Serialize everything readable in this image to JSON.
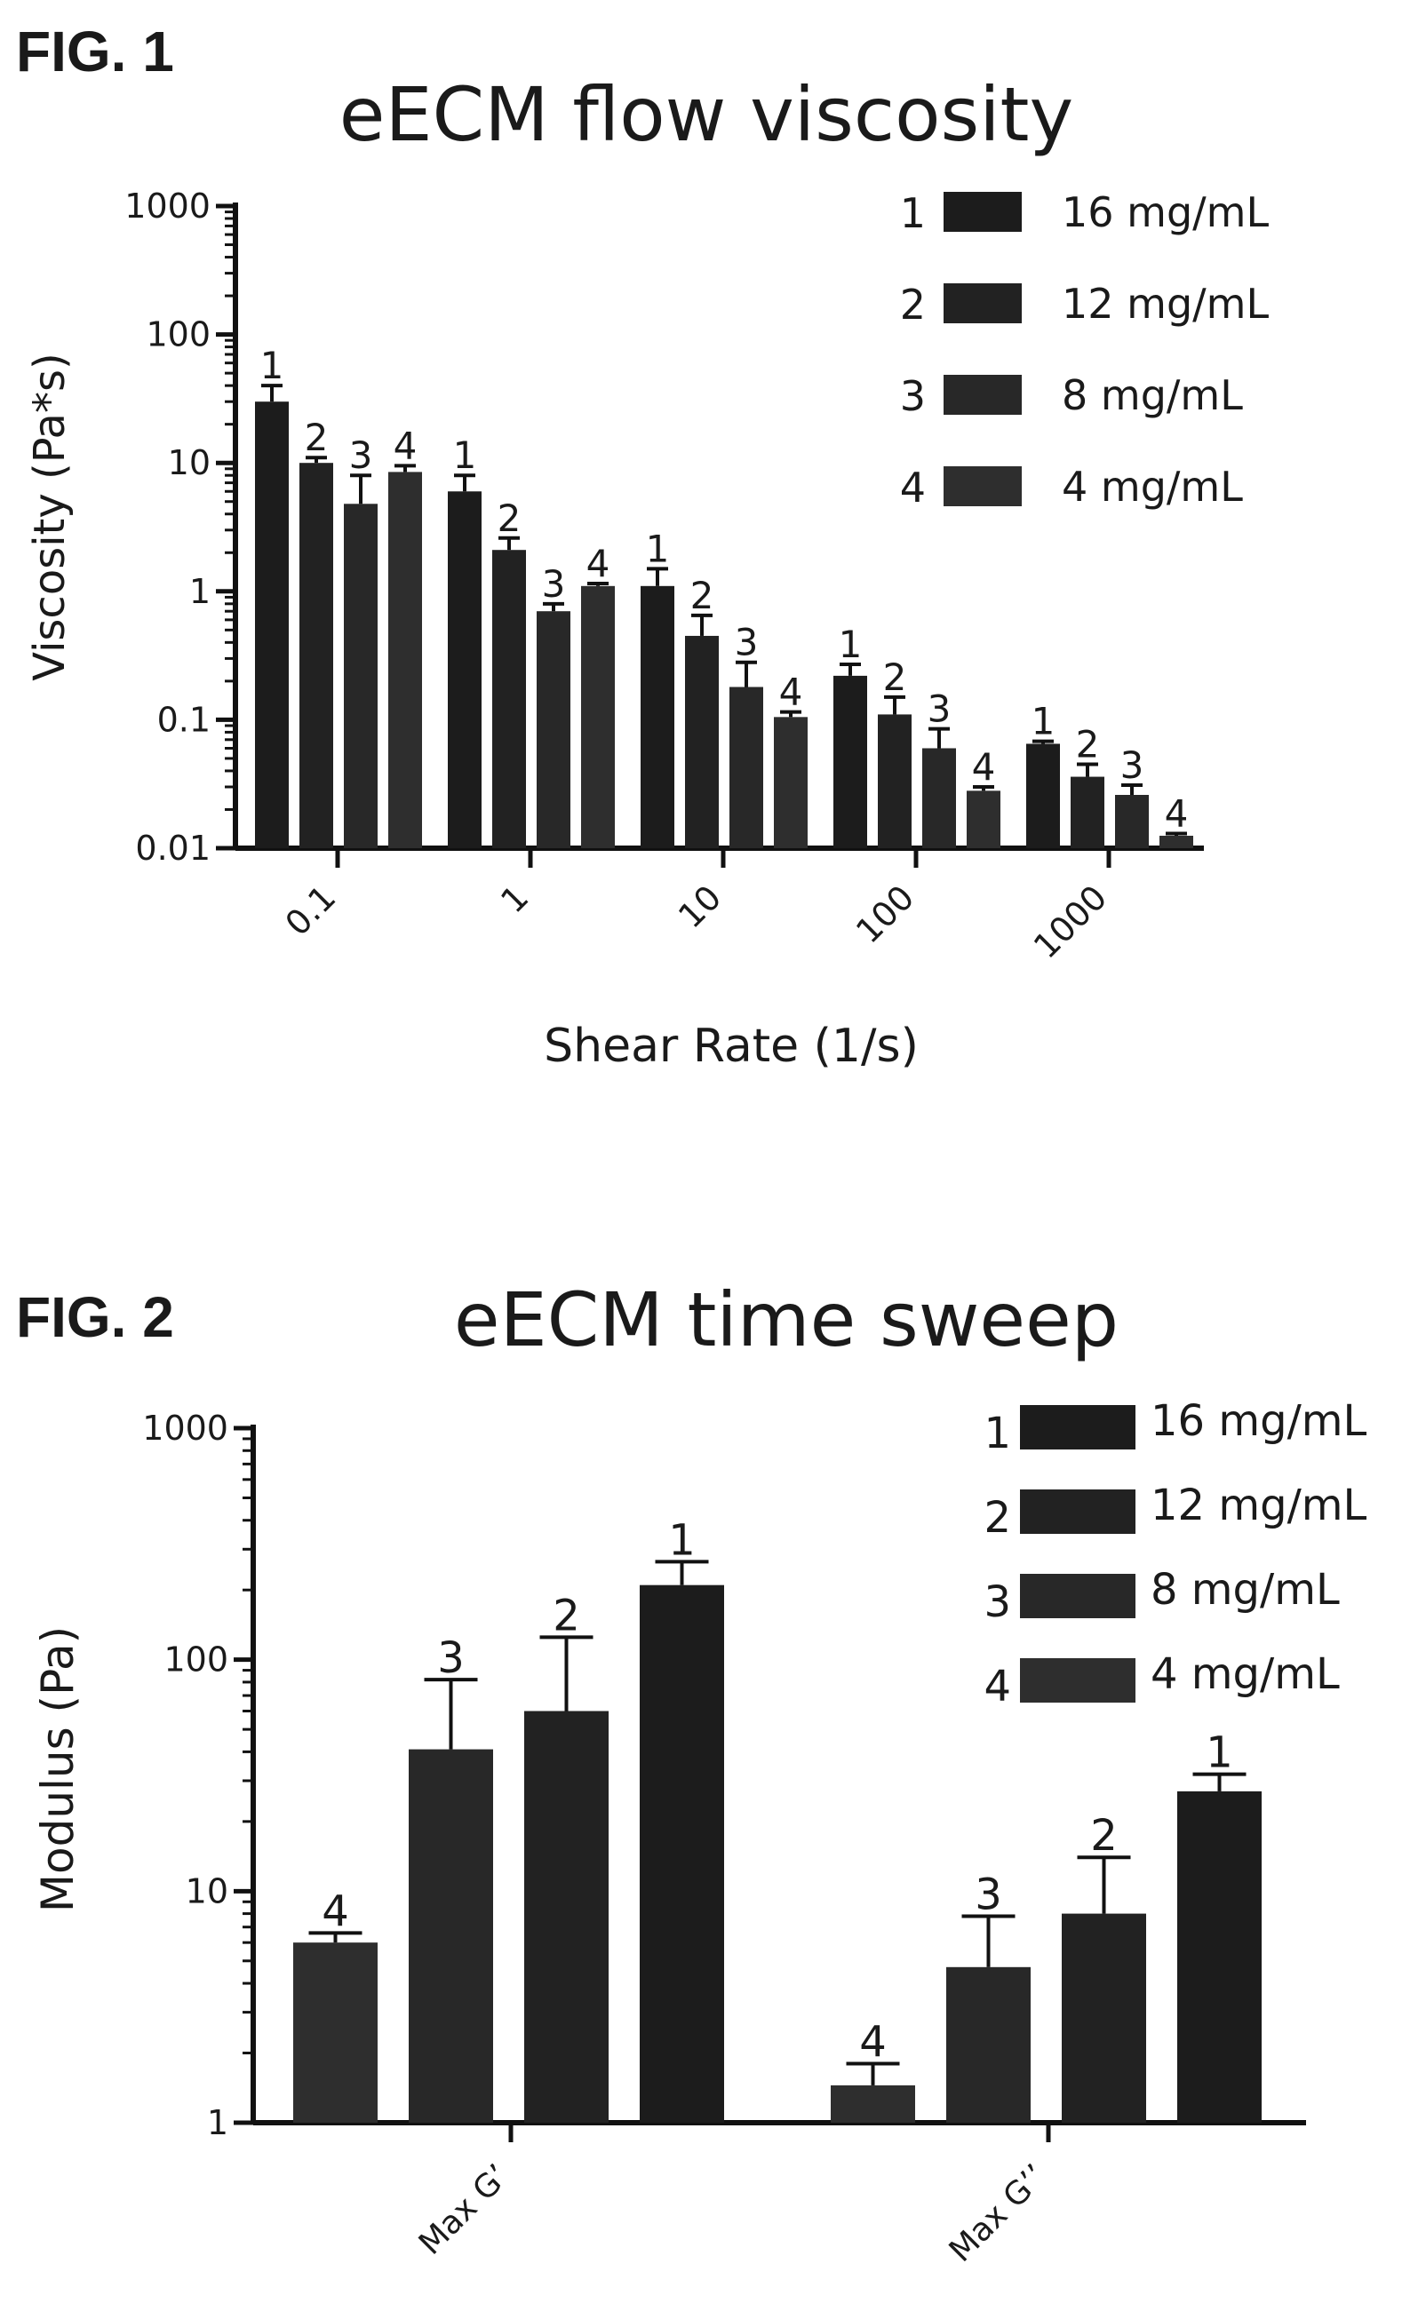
{
  "chart_data": [
    {
      "figure_label": "FIG. 1",
      "type": "bar",
      "title": "eECM flow viscosity",
      "xlabel": "Shear Rate (1/s)",
      "ylabel": "Viscosity (Pa*s)",
      "yscale": "log",
      "ylim": [
        0.01,
        1000
      ],
      "yticks": [
        "0.01",
        "0.1",
        "1",
        "10",
        "100",
        "1000"
      ],
      "categories": [
        "0.1",
        "1",
        "10",
        "100",
        "1000"
      ],
      "grid": false,
      "legend": "top-right",
      "bar_labels": [
        "1",
        "2",
        "3",
        "4"
      ],
      "series": [
        {
          "key": "1",
          "name": "16 mg/mL",
          "color": "#1c1c1c",
          "values": [
            30,
            6,
            1.1,
            0.22,
            0.065
          ],
          "errors": [
            40,
            8,
            1.5,
            0.27,
            0.068
          ]
        },
        {
          "key": "2",
          "name": "12 mg/mL",
          "color": "#222222",
          "values": [
            10,
            2.1,
            0.45,
            0.11,
            0.036
          ],
          "errors": [
            11,
            2.6,
            0.65,
            0.15,
            0.045
          ]
        },
        {
          "key": "3",
          "name": "8 mg/mL",
          "color": "#282828",
          "values": [
            4.8,
            0.7,
            0.18,
            0.06,
            0.026
          ],
          "errors": [
            8,
            0.8,
            0.28,
            0.085,
            0.031
          ]
        },
        {
          "key": "4",
          "name": "4 mg/mL",
          "color": "#2e2e2e",
          "values": [
            8.5,
            1.1,
            0.105,
            0.028,
            0.0125
          ],
          "errors": [
            9.5,
            1.15,
            0.115,
            0.03,
            0.013
          ]
        }
      ]
    },
    {
      "figure_label": "FIG. 2",
      "type": "bar",
      "title": "eECM time sweep",
      "xlabel": "",
      "ylabel": "Modulus (Pa)",
      "yscale": "log",
      "ylim": [
        1,
        1000
      ],
      "yticks": [
        "1",
        "10",
        "100",
        "1000"
      ],
      "categories": [
        "Max G'",
        "Max G''"
      ],
      "category_labels": [
        "Max G’",
        "Max G’’"
      ],
      "grid": false,
      "legend": "top-right",
      "bar_labels": [
        "4",
        "3",
        "2",
        "1"
      ],
      "series": [
        {
          "key": "4",
          "name": "4 mg/mL",
          "color": "#2e2e2e",
          "values": [
            6,
            1.45
          ],
          "errors": [
            6.6,
            1.8
          ]
        },
        {
          "key": "3",
          "name": "8 mg/mL",
          "color": "#282828",
          "values": [
            41,
            4.7
          ],
          "errors": [
            82,
            7.8
          ]
        },
        {
          "key": "2",
          "name": "12 mg/mL",
          "color": "#222222",
          "values": [
            60,
            8
          ],
          "errors": [
            125,
            14
          ]
        },
        {
          "key": "1",
          "name": "16 mg/mL",
          "color": "#1c1c1c",
          "values": [
            210,
            27
          ],
          "errors": [
            265,
            32
          ]
        }
      ],
      "legend_order": [
        "1",
        "2",
        "3",
        "4"
      ]
    }
  ]
}
